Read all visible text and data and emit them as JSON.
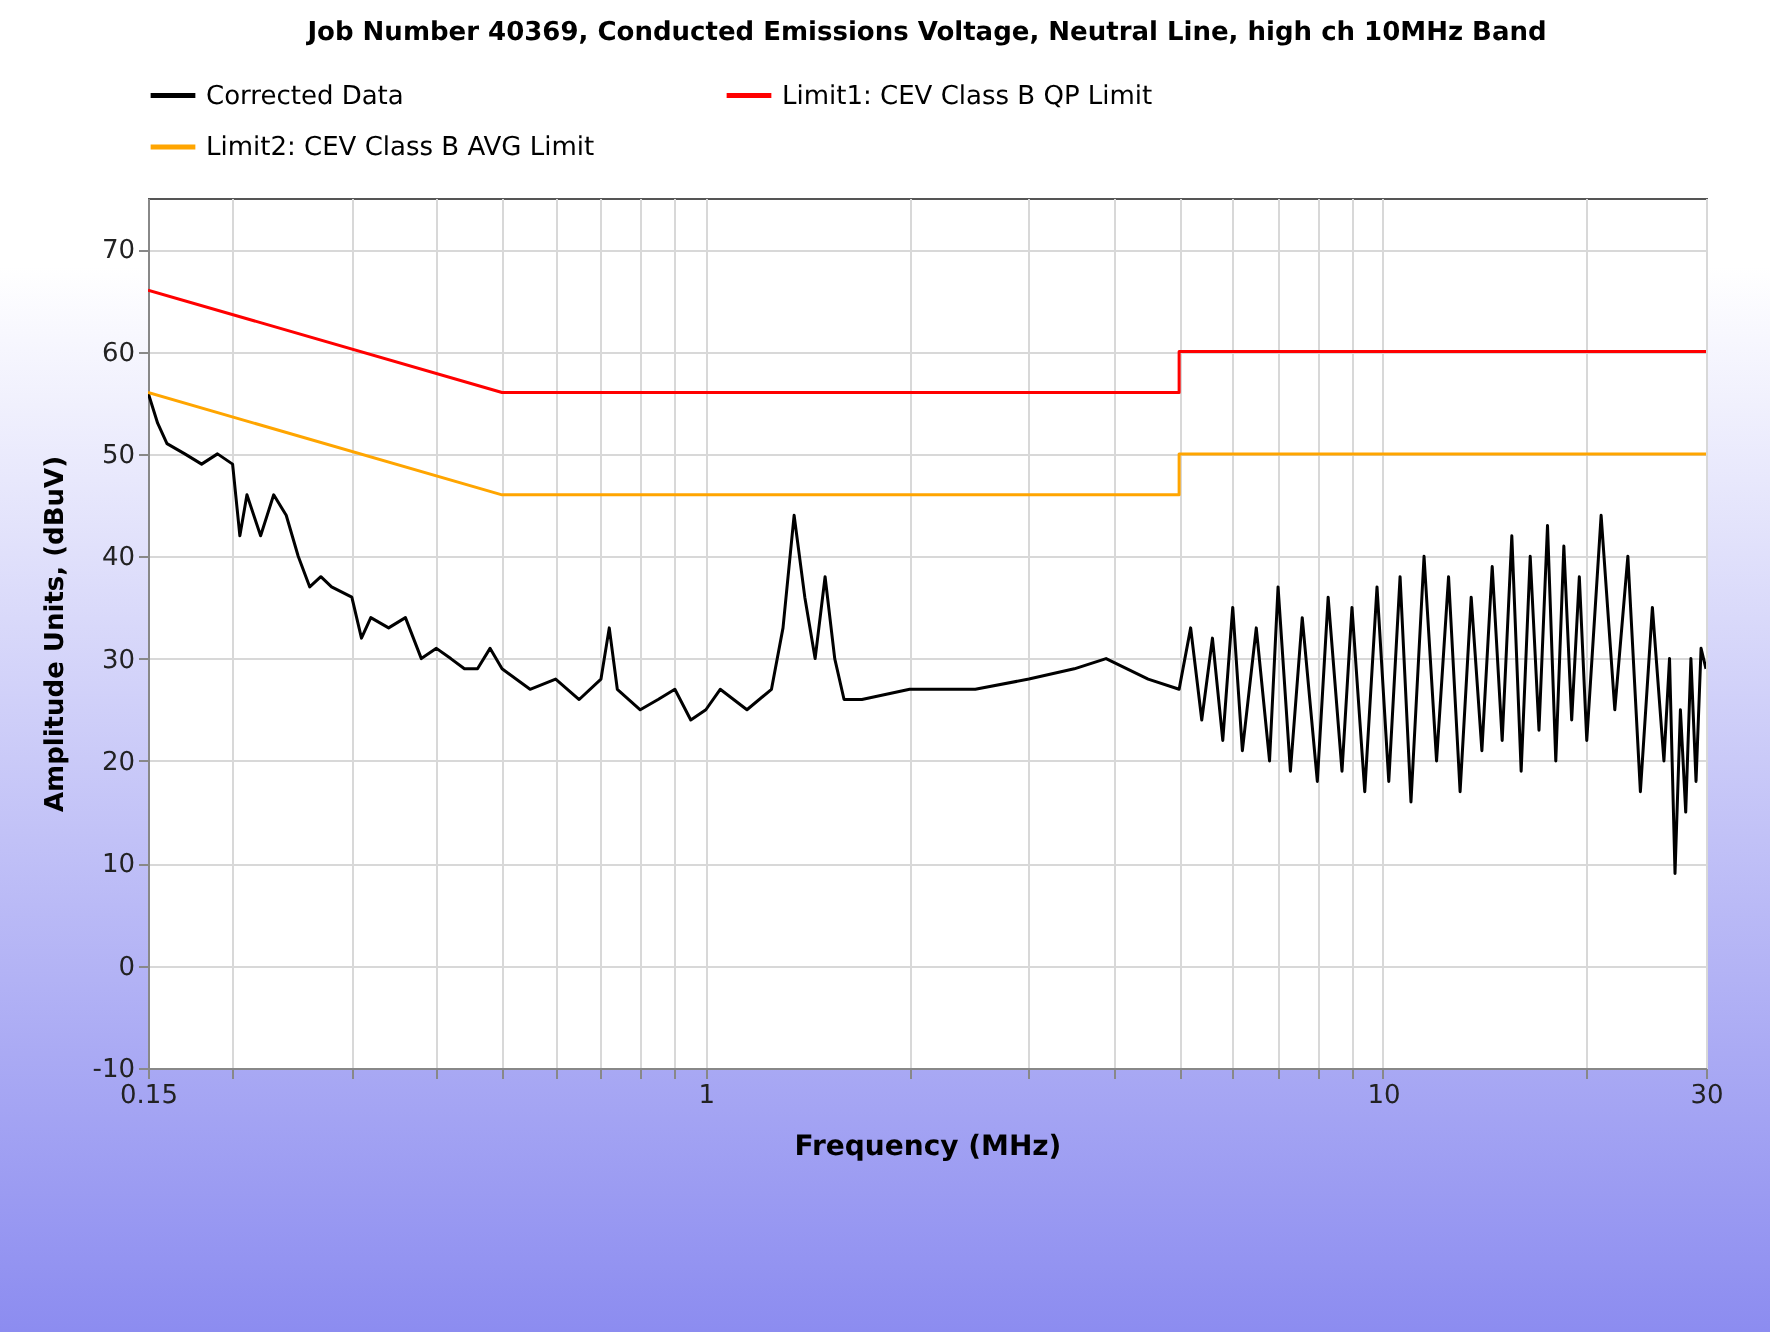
{
  "chart_data": {
    "type": "line",
    "title": "Job Number 40369, Conducted Emissions Voltage, Neutral Line, high ch 10MHz Band",
    "xlabel": "Frequency (MHz)",
    "ylabel": "Amplitude Units, (dBuV)",
    "log": "x",
    "grid": true,
    "legend": "top",
    "xlim": [
      0.15,
      30
    ],
    "ylim": [
      -10,
      75
    ],
    "xticks": [
      0.15,
      {
        "value": 0.2,
        "label": null
      },
      {
        "value": 0.3,
        "label": null
      },
      {
        "value": 0.4,
        "label": null
      },
      {
        "value": 0.5,
        "label": null
      },
      {
        "value": 0.6,
        "label": null
      },
      {
        "value": 0.7,
        "label": null
      },
      {
        "value": 0.8,
        "label": null
      },
      {
        "value": 0.9,
        "label": null
      },
      1,
      {
        "value": 2,
        "label": null
      },
      {
        "value": 3,
        "label": null
      },
      {
        "value": 4,
        "label": null
      },
      {
        "value": 5,
        "label": null
      },
      {
        "value": 6,
        "label": null
      },
      {
        "value": 7,
        "label": null
      },
      {
        "value": 8,
        "label": null
      },
      {
        "value": 9,
        "label": null
      },
      10,
      {
        "value": 20,
        "label": null
      },
      30
    ],
    "yticks": [
      -10,
      0,
      10,
      20,
      30,
      40,
      50,
      60,
      70
    ],
    "series": [
      {
        "name": "Corrected Data",
        "color": "#000000",
        "x": [
          0.15,
          0.155,
          0.16,
          0.17,
          0.18,
          0.19,
          0.2,
          0.205,
          0.21,
          0.22,
          0.23,
          0.24,
          0.25,
          0.26,
          0.27,
          0.28,
          0.3,
          0.31,
          0.32,
          0.34,
          0.36,
          0.38,
          0.4,
          0.42,
          0.44,
          0.46,
          0.48,
          0.5,
          0.55,
          0.6,
          0.65,
          0.7,
          0.72,
          0.74,
          0.8,
          0.85,
          0.9,
          0.95,
          1,
          1.05,
          1.15,
          1.25,
          1.3,
          1.35,
          1.4,
          1.45,
          1.5,
          1.55,
          1.6,
          1.7,
          2,
          2.5,
          3,
          3.5,
          3.9,
          4.5,
          5,
          5.2,
          5.4,
          5.6,
          5.8,
          6,
          6.2,
          6.5,
          6.8,
          7,
          7.3,
          7.6,
          8,
          8.3,
          8.7,
          9,
          9.4,
          9.8,
          10.2,
          10.6,
          11,
          11.5,
          12,
          12.5,
          13,
          13.5,
          14,
          14.5,
          15,
          15.5,
          16,
          16.5,
          17,
          17.5,
          18,
          18.5,
          19,
          19.5,
          20,
          21,
          22,
          23,
          24,
          25,
          26,
          26.5,
          27,
          27.5,
          28,
          28.5,
          29,
          29.5,
          30
        ],
        "values": [
          56,
          53,
          51,
          50,
          49,
          50,
          49,
          42,
          46,
          42,
          46,
          44,
          40,
          37,
          38,
          37,
          36,
          32,
          34,
          33,
          34,
          30,
          31,
          30,
          29,
          29,
          31,
          29,
          27,
          28,
          26,
          28,
          33,
          27,
          25,
          26,
          27,
          24,
          25,
          27,
          25,
          27,
          33,
          44,
          36,
          30,
          38,
          30,
          26,
          26,
          27,
          27,
          28,
          29,
          30,
          28,
          27,
          33,
          24,
          32,
          22,
          35,
          21,
          33,
          20,
          37,
          19,
          34,
          18,
          36,
          19,
          35,
          17,
          37,
          18,
          38,
          16,
          40,
          20,
          38,
          17,
          36,
          21,
          39,
          22,
          42,
          19,
          40,
          23,
          43,
          20,
          41,
          24,
          38,
          22,
          44,
          25,
          40,
          17,
          35,
          20,
          30,
          9,
          25,
          15,
          30,
          18,
          31,
          29
        ]
      },
      {
        "name": "Limit1: CEV Class B QP Limit",
        "color": "#ff0000",
        "x": [
          0.15,
          0.5,
          5,
          5,
          30
        ],
        "values": [
          66,
          56,
          56,
          60,
          60
        ]
      },
      {
        "name": "Limit2: CEV Class B AVG Limit",
        "color": "#ffa500",
        "x": [
          0.15,
          0.5,
          5,
          5,
          30
        ],
        "values": [
          56,
          46,
          46,
          50,
          50
        ]
      }
    ]
  }
}
